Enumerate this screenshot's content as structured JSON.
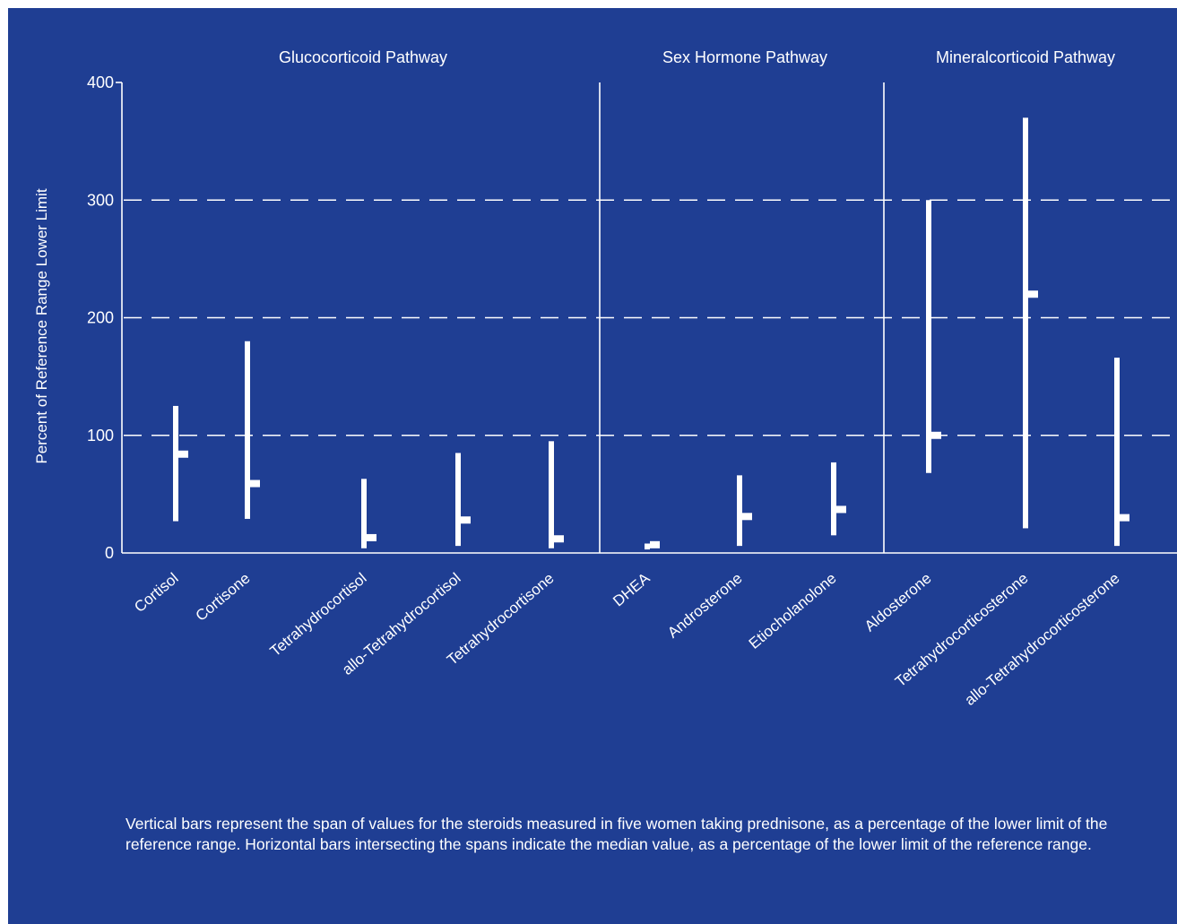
{
  "chart_data": {
    "type": "range",
    "ylabel": "Percent of Reference Range Lower Limit",
    "ylim": [
      0,
      400
    ],
    "yticks": [
      0,
      100,
      200,
      300,
      400
    ],
    "gridlines": [
      100,
      200,
      300
    ],
    "grid_style": "dashed horizontal",
    "groups": [
      {
        "title": "Glucocorticoid Pathway",
        "categories": [
          "Cortisol",
          "Cortisone",
          "Tetrahydrocortisol",
          "allo-Tetrahydrocortisol",
          "Tetrahydrocortisone"
        ]
      },
      {
        "title": "Sex Hormone Pathway",
        "categories": [
          "DHEA",
          "Androsterone",
          "Etiocholanolone"
        ]
      },
      {
        "title": "Mineralcorticoid Pathway",
        "categories": [
          "Aldosterone",
          "Tetrahydrocorticosterone",
          "allo-Tetrahydrocorticosterone"
        ]
      }
    ],
    "categories": [
      "Cortisol",
      "Cortisone",
      "Tetrahydrocortisol",
      "allo-Tetrahydrocortisol",
      "Tetrahydrocortisone",
      "DHEA",
      "Androsterone",
      "Etiocholanolone",
      "Aldosterone",
      "Tetrahydrocorticosterone",
      "allo-Tetrahydrocorticosterone"
    ],
    "min": [
      27,
      29,
      4,
      6,
      4,
      3,
      6,
      15,
      68,
      21,
      6
    ],
    "max": [
      125,
      180,
      63,
      85,
      95,
      8,
      66,
      77,
      300,
      370,
      166
    ],
    "median": [
      84,
      59,
      13,
      28,
      12,
      7,
      31,
      37,
      100,
      220,
      30
    ],
    "colors": {
      "background": "#1f3e93",
      "foreground": "#ffffff"
    }
  },
  "caption": "Vertical bars represent the span of values for the steroids measured in five women taking prednisone, as a percentage of the lower limit of the reference range. Horizontal bars intersecting the spans indicate the median value, as a percentage of the lower limit of the reference range."
}
